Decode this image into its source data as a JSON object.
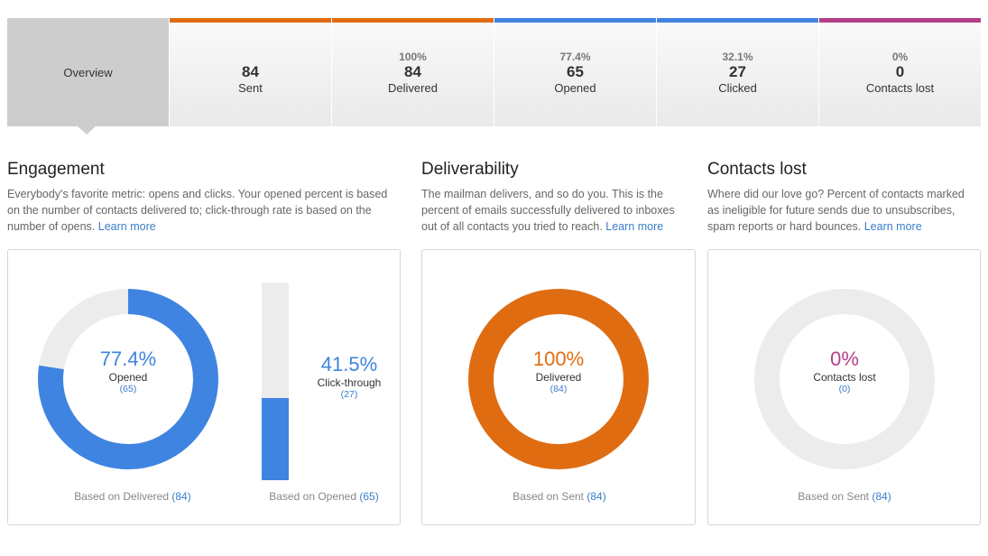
{
  "colors": {
    "sent": "#e06c12",
    "delivered": "#e06c12",
    "opened": "#3f84e0",
    "clicked": "#3f84e0",
    "lost": "#b43e87",
    "track": "#ececec"
  },
  "tabs": {
    "overview": {
      "label": "Overview"
    },
    "sent": {
      "number": "84",
      "label": "Sent"
    },
    "delivered": {
      "percent": "100%",
      "number": "84",
      "label": "Delivered"
    },
    "opened": {
      "percent": "77.4%",
      "number": "65",
      "label": "Opened"
    },
    "clicked": {
      "percent": "32.1%",
      "number": "27",
      "label": "Clicked"
    },
    "lost": {
      "percent": "0%",
      "number": "0",
      "label": "Contacts lost"
    }
  },
  "engagement": {
    "title": "Engagement",
    "description": "Everybody's favorite metric: opens and clicks. Your opened percent is based on the number of contacts delivered to; click-through rate is based on the number of opens.",
    "learn_more": "Learn more",
    "opened": {
      "value": "77.4%",
      "fraction": 0.774,
      "label": "Opened",
      "count": "(65)",
      "footer_text": "Based on Delivered",
      "footer_count": "(84)"
    },
    "clickthrough": {
      "value": "41.5%",
      "fraction": 0.415,
      "label": "Click-through",
      "count": "(27)",
      "footer_text": "Based on Opened",
      "footer_count": "(65)"
    }
  },
  "deliverability": {
    "title": "Deliverability",
    "description": "The mailman delivers, and so do you. This is the percent of emails successfully delivered to inboxes out of all contacts you tried to reach.",
    "learn_more": "Learn more",
    "value": "100%",
    "fraction": 1.0,
    "label": "Delivered",
    "count": "(84)",
    "footer_text": "Based on Sent",
    "footer_count": "(84)"
  },
  "contacts_lost": {
    "title": "Contacts lost",
    "description": "Where did our love go? Percent of contacts marked as ineligible for future sends due to unsubscribes, spam reports or hard bounces.",
    "learn_more": "Learn more",
    "value": "0%",
    "fraction": 0,
    "label": "Contacts lost",
    "count": "(0)",
    "footer_text": "Based on Sent",
    "footer_count": "(84)"
  }
}
